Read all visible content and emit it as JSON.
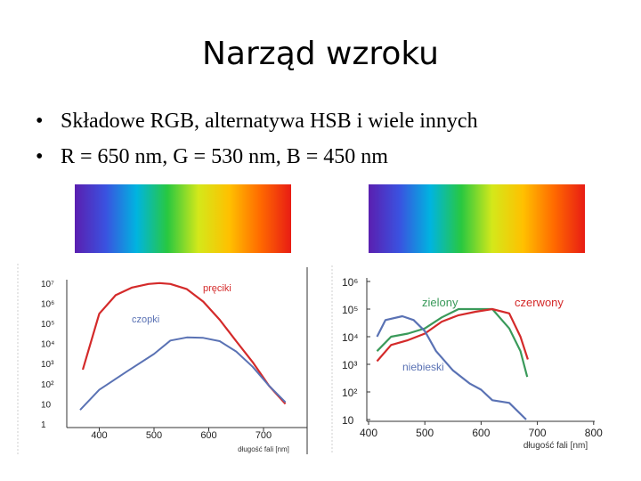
{
  "slide": {
    "title": "Narząd wzroku",
    "bullets": [
      "Składowe RGB, alternatywa HSB i wiele innych",
      "R = 650 nm, G = 530 nm, B = 450 nm"
    ],
    "bullet_symbol": "•"
  },
  "spectrum_colors": [
    "#5a1fb0",
    "#3a52e0",
    "#00b4e0",
    "#28c840",
    "#d4e81a",
    "#ffc000",
    "#ff6a00",
    "#e81c14"
  ],
  "chart_data": [
    {
      "type": "line",
      "xlabel": "długość fali [nm]",
      "x_ticks": [
        400,
        500,
        600,
        700
      ],
      "xlim": [
        345,
        765
      ],
      "y_scale": "log",
      "y_tick_labels": [
        "10⁷",
        "10⁶",
        "10⁵",
        "10⁴",
        "10³",
        "10²",
        "10",
        "1"
      ],
      "series": [
        {
          "name": "pręciki",
          "color": "#d42a2a",
          "x": [
            370,
            400,
            430,
            460,
            490,
            510,
            530,
            560,
            590,
            620,
            650,
            680,
            710,
            740
          ],
          "y": [
            500,
            300000.0,
            2500000.0,
            6000000.0,
            9000000.0,
            10000000.0,
            9000000.0,
            5000000.0,
            1200000.0,
            150000.0,
            13000.0,
            1200,
            80,
            10
          ]
        },
        {
          "name": "czopki",
          "color": "#5a72b4",
          "x": [
            365,
            400,
            450,
            500,
            530,
            560,
            590,
            620,
            650,
            680,
            710,
            740
          ],
          "y": [
            5,
            50,
            400,
            3000,
            14000.0,
            20000.0,
            19000.0,
            13000.0,
            4000,
            700,
            80,
            12
          ]
        }
      ]
    },
    {
      "type": "line",
      "xlabel": "długość fali [nm]",
      "x_ticks": [
        400,
        500,
        600,
        700,
        800
      ],
      "xlim": [
        400,
        800
      ],
      "y_scale": "log",
      "ylim": [
        10,
        1000000
      ],
      "y_tick_labels": [
        "10⁶",
        "10⁵",
        "10⁴",
        "10³",
        "10²",
        "10"
      ],
      "series": [
        {
          "name": "zielony",
          "color": "#3a9a5a",
          "x": [
            415,
            440,
            470,
            500,
            530,
            560,
            590,
            620,
            650,
            670,
            682
          ],
          "y": [
            3000,
            10000.0,
            13000.0,
            20000.0,
            50000.0,
            100000.0,
            100000.0,
            100000.0,
            20000.0,
            3000,
            350
          ]
        },
        {
          "name": "czerwony",
          "color": "#d42a2a",
          "x": [
            415,
            440,
            470,
            500,
            530,
            560,
            590,
            620,
            650,
            670,
            683
          ],
          "y": [
            1300,
            5000,
            7500,
            13000.0,
            35000.0,
            60000.0,
            80000.0,
            100000.0,
            70000.0,
            10000.0,
            1500
          ]
        },
        {
          "name": "niebieski",
          "color": "#5a72b4",
          "x": [
            415,
            430,
            460,
            480,
            500,
            520,
            550,
            580,
            600,
            620,
            650,
            680
          ],
          "y": [
            10000.0,
            40000.0,
            55000.0,
            40000.0,
            16000.0,
            3000,
            600,
            200,
            120,
            50,
            40,
            10
          ]
        }
      ]
    }
  ]
}
